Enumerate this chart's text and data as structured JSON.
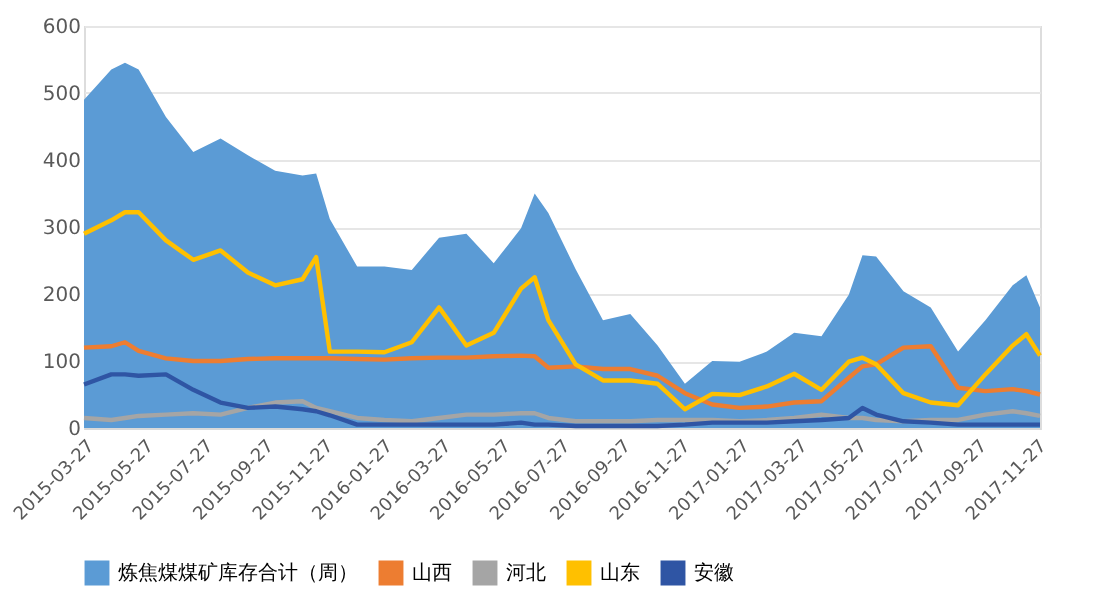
{
  "chart_data": {
    "type": "area",
    "x": [
      "2015-03-27",
      "2015-04-24",
      "2015-05-08",
      "2015-05-22",
      "2015-06-19",
      "2015-07-17",
      "2015-08-14",
      "2015-09-11",
      "2015-10-09",
      "2015-11-06",
      "2015-11-20",
      "2015-12-04",
      "2016-01-01",
      "2016-01-29",
      "2016-02-26",
      "2016-03-25",
      "2016-04-22",
      "2016-05-20",
      "2016-06-17",
      "2016-07-01",
      "2016-07-15",
      "2016-08-12",
      "2016-09-09",
      "2016-10-07",
      "2016-11-04",
      "2016-12-02",
      "2016-12-30",
      "2017-01-27",
      "2017-02-24",
      "2017-03-24",
      "2017-04-21",
      "2017-05-19",
      "2017-06-02",
      "2017-06-16",
      "2017-07-14",
      "2017-08-11",
      "2017-09-08",
      "2017-10-06",
      "2017-11-03",
      "2017-11-17",
      "2017-12-01"
    ],
    "series": [
      {
        "name": "炼焦煤煤矿库存合计（周）",
        "color": "#5b9bd5",
        "values": [
          490,
          535,
          545,
          535,
          464,
          412,
          432,
          407,
          384,
          377,
          380,
          312,
          241,
          241,
          236,
          284,
          290,
          246,
          298,
          350,
          321,
          237,
          161,
          170,
          123,
          66,
          100,
          99,
          114,
          142,
          137,
          199,
          258,
          256,
          204,
          180,
          114,
          161,
          213,
          228,
          180
        ]
      },
      {
        "name": "山西",
        "type": "line",
        "color": "#ed7d31",
        "values": [
          120,
          122,
          128,
          115,
          104,
          100,
          100,
          103,
          104,
          104,
          104,
          104,
          103,
          102,
          104,
          105,
          105,
          107,
          108,
          107,
          90,
          92,
          88,
          88,
          78,
          52,
          35,
          30,
          32,
          38,
          40,
          75,
          92,
          95,
          120,
          122,
          60,
          55,
          58,
          55,
          50
        ]
      },
      {
        "name": "河北",
        "type": "line",
        "color": "#a5a5a5",
        "values": [
          15,
          12,
          15,
          18,
          20,
          22,
          20,
          30,
          38,
          40,
          30,
          25,
          15,
          12,
          10,
          15,
          20,
          20,
          22,
          22,
          15,
          10,
          10,
          10,
          12,
          12,
          12,
          10,
          12,
          15,
          20,
          15,
          15,
          12,
          10,
          12,
          12,
          20,
          25,
          22,
          18
        ]
      },
      {
        "name": "山东",
        "type": "line",
        "color": "#ffc000",
        "values": [
          290,
          310,
          322,
          322,
          280,
          251,
          265,
          232,
          213,
          222,
          255,
          114,
          114,
          113,
          128,
          180,
          123,
          142,
          208,
          225,
          161,
          95,
          71,
          71,
          66,
          28,
          51,
          49,
          62,
          81,
          57,
          99,
          105,
          95,
          52,
          38,
          34,
          80,
          123,
          140,
          108
        ]
      },
      {
        "name": "安徽",
        "type": "line",
        "color": "#2f55a4",
        "values": [
          65,
          80,
          80,
          78,
          80,
          57,
          38,
          30,
          32,
          28,
          25,
          19,
          5,
          5,
          5,
          5,
          5,
          5,
          8,
          5,
          5,
          3,
          3,
          3,
          3,
          5,
          8,
          8,
          8,
          10,
          12,
          15,
          30,
          20,
          10,
          8,
          5,
          5,
          5,
          5,
          5
        ]
      }
    ],
    "xlim": [
      "2015-03-27",
      "2017-12-01"
    ],
    "xticks": [
      "2015-03-27",
      "2015-05-27",
      "2015-07-27",
      "2015-09-27",
      "2015-11-27",
      "2016-01-27",
      "2016-03-27",
      "2016-05-27",
      "2016-07-27",
      "2016-09-27",
      "2016-11-27",
      "2017-01-27",
      "2017-03-27",
      "2017-05-27",
      "2017-07-27",
      "2017-09-27",
      "2017-11-27"
    ],
    "ylim": [
      0,
      600
    ],
    "yticks": [
      0,
      100,
      200,
      300,
      400,
      500,
      600
    ],
    "grid": "y",
    "legend": "bottom",
    "line_style": "solid",
    "marker": "none"
  }
}
